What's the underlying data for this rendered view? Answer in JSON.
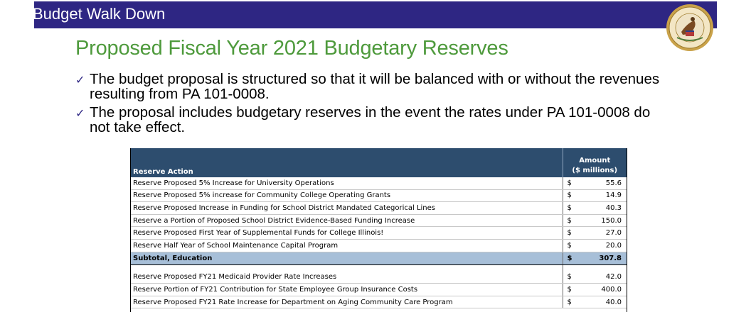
{
  "header": {
    "title": "Budget Walk Down",
    "bar_color": "#2e2683",
    "seal_icon": "illinois-state-seal"
  },
  "page_title": "Proposed Fiscal Year 2021 Budgetary Reserves",
  "bullets": [
    "The budget proposal is structured so that it will be balanced with or without the revenues resulting from PA 101-0008.",
    "The proposal includes budgetary reserves in the event the rates under PA 101-0008 do not take effect."
  ],
  "table": {
    "header": {
      "action": "Reserve Action",
      "amount_line1": "Amount",
      "amount_line2": "($ millions)"
    },
    "rows": [
      {
        "action": "Reserve Proposed 5% Increase for University Operations",
        "currency": "$",
        "value": "55.6"
      },
      {
        "action": "Reserve Proposed 5% increase for Community College Operating Grants",
        "currency": "$",
        "value": "14.9"
      },
      {
        "action": "Reserve Proposed Increase in Funding for School District Mandated Categorical Lines",
        "currency": "$",
        "value": "40.3"
      },
      {
        "action": "Reserve a Portion of Proposed School District Evidence-Based Funding Increase",
        "currency": "$",
        "value": "150.0"
      },
      {
        "action": "Reserve Proposed First Year of Supplemental Funds for College Illinois!",
        "currency": "$",
        "value": "27.0"
      },
      {
        "action": "Reserve Half Year of School Maintenance Capital Program",
        "currency": "$",
        "value": "20.0"
      }
    ],
    "subtotal": {
      "action": "Subtotal,  Education",
      "currency": "$",
      "value": "307.8"
    },
    "rows2": [
      {
        "action": "Reserve Proposed FY21 Medicaid Provider Rate Increases",
        "currency": "$",
        "value": "42.0"
      },
      {
        "action": "Reserve Portion of FY21 Contribution for State Employee Group Insurance Costs",
        "currency": "$",
        "value": "400.0"
      },
      {
        "action": "Reserve Proposed FY21 Rate Increase for Department on Aging Community Care Program",
        "currency": "$",
        "value": "40.0"
      }
    ]
  }
}
